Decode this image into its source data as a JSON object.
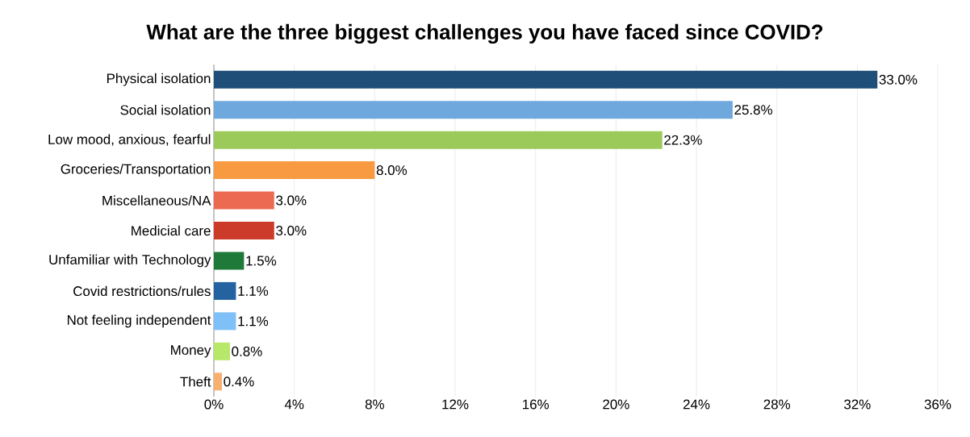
{
  "chart_data": {
    "type": "bar",
    "orientation": "horizontal",
    "title": "What are the three biggest challenges you have faced since COVID?",
    "categories": [
      "Physical isolation",
      "Social isolation",
      "Low mood, anxious, fearful",
      "Groceries/Transportation",
      "Miscellaneous/NA",
      "Medicial care",
      "Unfamiliar with Technology",
      "Covid restrictions/rules",
      "Not feeling independent",
      "Money",
      "Theft"
    ],
    "values": [
      33.0,
      25.8,
      22.3,
      8.0,
      3.0,
      3.0,
      1.5,
      1.1,
      1.1,
      0.8,
      0.4
    ],
    "colors": [
      "#1f4e79",
      "#6fa8dc",
      "#9bc95a",
      "#f79a42",
      "#ec6a52",
      "#cc3a2a",
      "#1f7a3a",
      "#2563a0",
      "#80c0f8",
      "#b8e86a",
      "#f8b070"
    ],
    "value_labels": [
      "33.0%",
      "25.8%",
      "22.3%",
      "8.0%",
      "3.0%",
      "3.0%",
      "1.5%",
      "1.1%",
      "1.1%",
      "0.8%",
      "0.4%"
    ],
    "xlim": [
      0,
      36
    ],
    "xticks": [
      {
        "value": 0,
        "label": "0%"
      },
      {
        "value": 4,
        "label": "4%"
      },
      {
        "value": 8,
        "label": "8%"
      },
      {
        "value": 12,
        "label": "12%"
      },
      {
        "value": 16,
        "label": "16%"
      },
      {
        "value": 20,
        "label": "20%"
      },
      {
        "value": 24,
        "label": "24%"
      },
      {
        "value": 28,
        "label": "28%"
      },
      {
        "value": 32,
        "label": "32%"
      },
      {
        "value": 36,
        "label": "36%"
      }
    ],
    "grid": "x"
  }
}
